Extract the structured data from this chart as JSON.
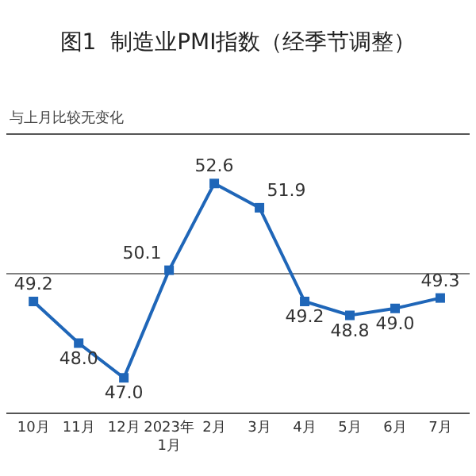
{
  "chart_data": {
    "type": "line",
    "title": "图1  制造业PMI指数（经季节调整）",
    "subtitle": "与上月比较无变化",
    "categories": [
      "10月",
      "11月",
      "12月",
      "2023年\n1月",
      "2月",
      "3月",
      "4月",
      "5月",
      "6月",
      "7月"
    ],
    "series": [
      {
        "color": "#1f66b8",
        "values": [
          49.2,
          48.0,
          47.0,
          50.1,
          52.6,
          51.9,
          49.2,
          48.8,
          49.0,
          49.3
        ],
        "value_labels": [
          "49.2",
          "48.0",
          "47.0",
          "50.1",
          "52.6",
          "51.9",
          "49.2",
          "48.8",
          "49.0",
          "49.3"
        ]
      }
    ],
    "ylim": [
      46,
      54
    ],
    "ref_lines": [
      {
        "axis": "y",
        "value": 50,
        "color": "#808080"
      }
    ],
    "marker": "square",
    "line_style": "solid",
    "tick_labels": "x"
  }
}
